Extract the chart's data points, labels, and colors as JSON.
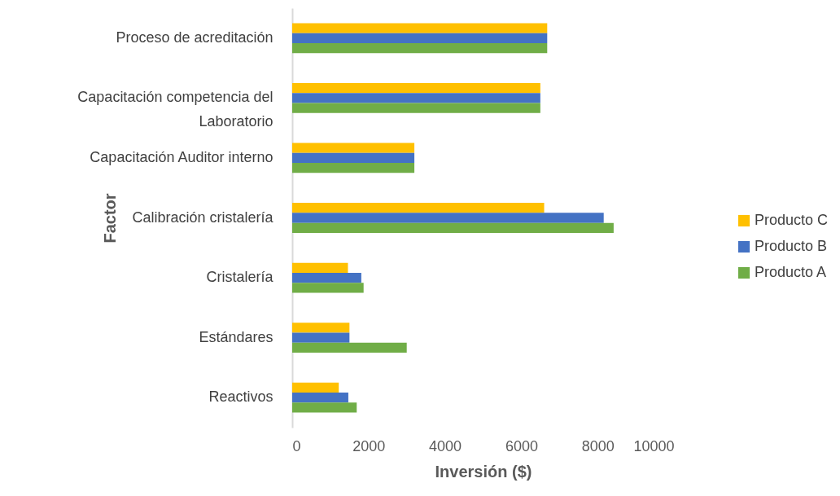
{
  "chart_data": {
    "type": "bar",
    "orientation": "horizontal",
    "xlabel": "Inversión ($)",
    "ylabel": "Factor",
    "categories": [
      "Proceso de acreditación",
      "Capacitación competencia del Laboratorio",
      "Capacitación Auditor interno",
      "Calibración cristalería",
      "Cristalería",
      "Estándares",
      "Reactivos"
    ],
    "series": [
      {
        "name": "Producto C",
        "color": "#ffc000",
        "values": [
          6680,
          6500,
          3200,
          6600,
          1460,
          1500,
          1220
        ]
      },
      {
        "name": "Producto B",
        "color": "#4472c4",
        "values": [
          6680,
          6500,
          3200,
          8160,
          1810,
          1500,
          1470
        ]
      },
      {
        "name": "Producto A",
        "color": "#70ad47",
        "values": [
          6680,
          6500,
          3200,
          8420,
          1870,
          3000,
          1690
        ]
      }
    ],
    "xlim": [
      0,
      10000
    ],
    "xticks": [
      0,
      2000,
      4000,
      6000,
      8000,
      10000
    ],
    "grid": false,
    "legend": "right"
  }
}
